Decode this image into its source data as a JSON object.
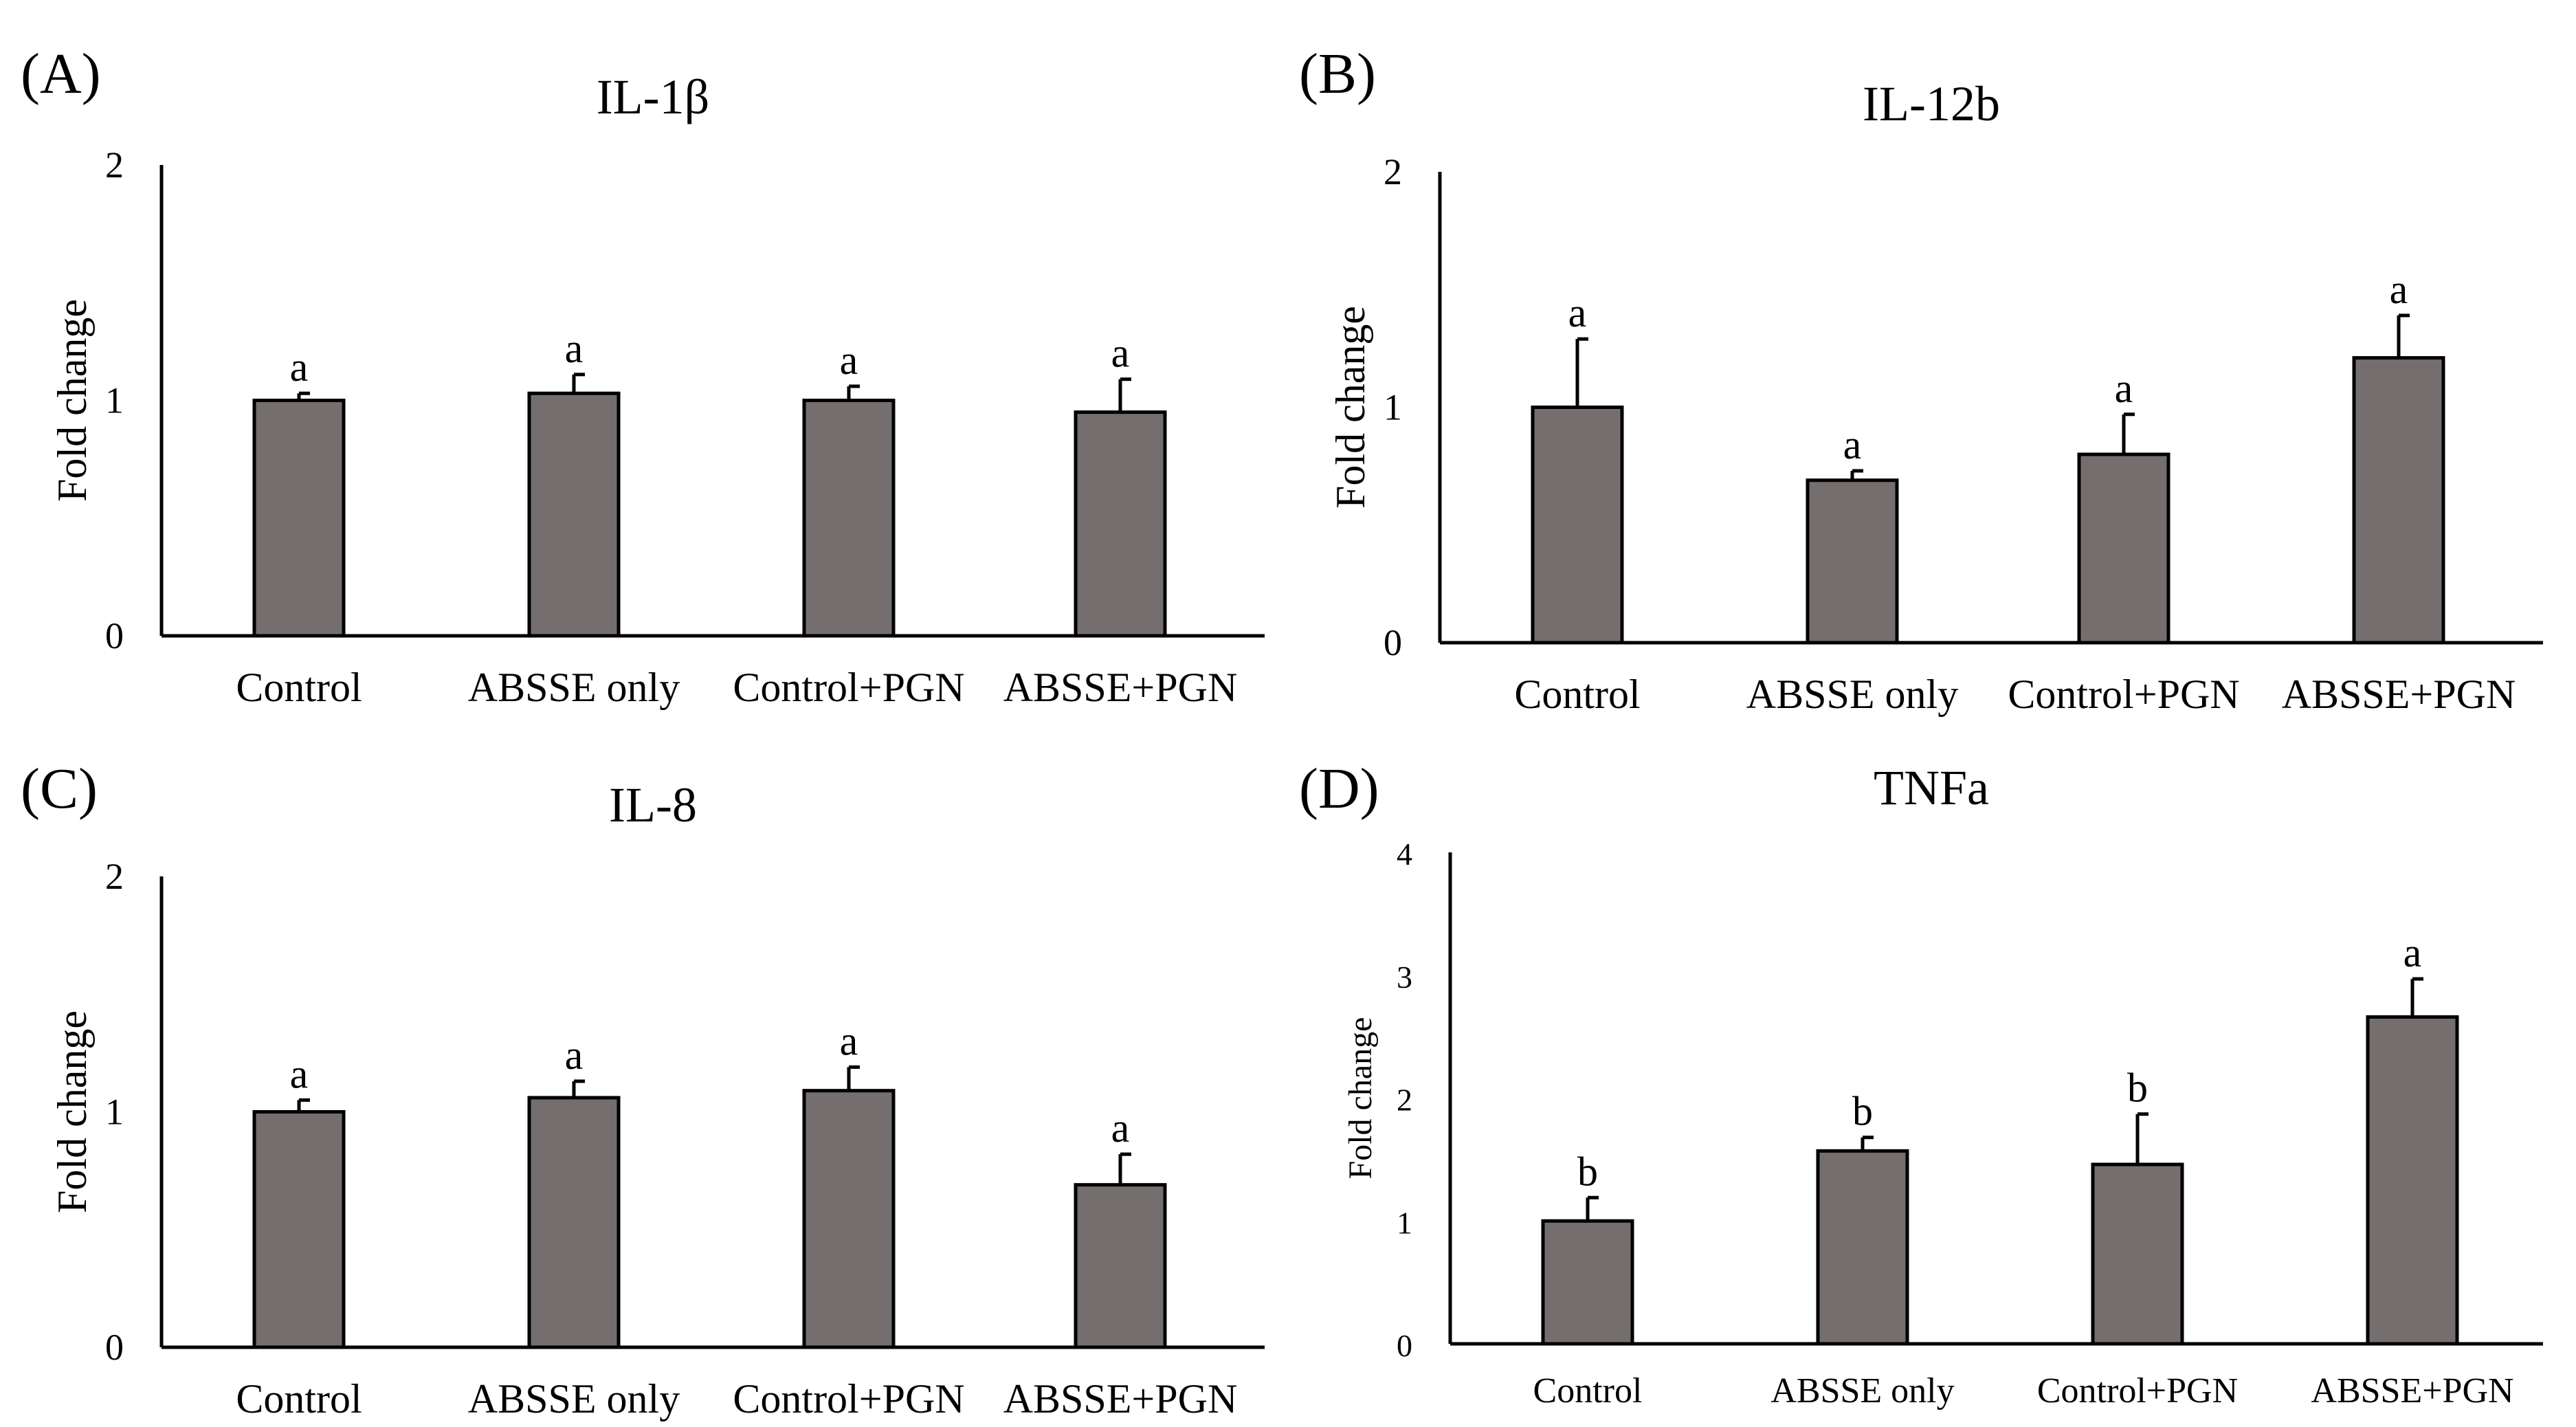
{
  "chart_data": [
    {
      "type": "bar",
      "panel_label": "(A)",
      "title": "IL-1β",
      "ylabel": "Fold change",
      "xlabel": "",
      "ylim": [
        0,
        2
      ],
      "yticks": [
        "0",
        "1",
        "2"
      ],
      "categories": [
        "Control",
        "ABSSE only",
        "Control+PGN",
        "ABSSE+PGN"
      ],
      "values": [
        1.0,
        1.03,
        1.0,
        0.95
      ],
      "errors": [
        0.03,
        0.08,
        0.06,
        0.14
      ],
      "significance": [
        "a",
        "a",
        "a",
        "a"
      ],
      "bar_color": "#756e6e",
      "grid": false
    },
    {
      "type": "bar",
      "panel_label": "(B)",
      "title": "IL-12b",
      "ylabel": "Fold change",
      "xlabel": "",
      "ylim": [
        0,
        2
      ],
      "yticks": [
        "0",
        "1",
        "2"
      ],
      "categories": [
        "Control",
        "ABSSE only",
        "Control+PGN",
        "ABSSE+PGN"
      ],
      "values": [
        1.0,
        0.69,
        0.8,
        1.21
      ],
      "errors": [
        0.29,
        0.04,
        0.17,
        0.18
      ],
      "significance": [
        "a",
        "a",
        "a",
        "a"
      ],
      "bar_color": "#756e6e",
      "grid": false
    },
    {
      "type": "bar",
      "panel_label": "(C)",
      "title": "IL-8",
      "ylabel": "Fold change",
      "xlabel": "",
      "ylim": [
        0,
        2
      ],
      "yticks": [
        "0",
        "1",
        "2"
      ],
      "categories": [
        "Control",
        "ABSSE only",
        "Control+PGN",
        "ABSSE+PGN"
      ],
      "values": [
        1.0,
        1.06,
        1.09,
        0.69
      ],
      "errors": [
        0.05,
        0.07,
        0.1,
        0.13
      ],
      "significance": [
        "a",
        "a",
        "a",
        "a"
      ],
      "bar_color": "#756e6e",
      "grid": false
    },
    {
      "type": "bar",
      "panel_label": "(D)",
      "title": "TNFa",
      "ylabel": "Fold change",
      "xlabel": "",
      "ylim": [
        0,
        4
      ],
      "yticks": [
        "0",
        "1",
        "2",
        "3",
        "4"
      ],
      "categories": [
        "Control",
        "ABSSE only",
        "Control+PGN",
        "ABSSE+PGN"
      ],
      "values": [
        1.0,
        1.57,
        1.46,
        2.66
      ],
      "errors": [
        0.19,
        0.11,
        0.41,
        0.31
      ],
      "significance": [
        "b",
        "b",
        "b",
        "a"
      ],
      "bar_color": "#756e6e",
      "grid": false
    }
  ]
}
